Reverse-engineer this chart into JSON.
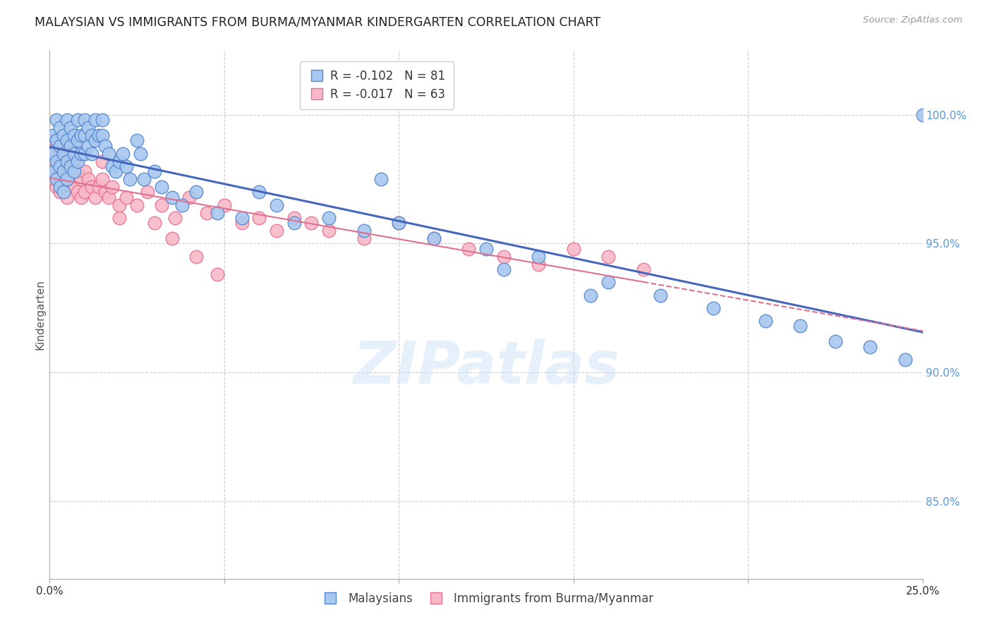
{
  "title": "MALAYSIAN VS IMMIGRANTS FROM BURMA/MYANMAR KINDERGARTEN CORRELATION CHART",
  "source": "Source: ZipAtlas.com",
  "ylabel": "Kindergarten",
  "right_yticks": [
    "100.0%",
    "95.0%",
    "90.0%",
    "85.0%"
  ],
  "right_ytick_vals": [
    1.0,
    0.95,
    0.9,
    0.85
  ],
  "xlim": [
    0.0,
    0.25
  ],
  "ylim": [
    0.82,
    1.025
  ],
  "legend_label1": "Malaysians",
  "legend_label2": "Immigrants from Burma/Myanmar",
  "R1": -0.102,
  "N1": 81,
  "R2": -0.017,
  "N2": 63,
  "color_blue_fill": "#A8C8F0",
  "color_blue_edge": "#5588CC",
  "color_pink_fill": "#F8B8C8",
  "color_pink_edge": "#E87090",
  "color_blue_line": "#4466BB",
  "color_pink_line": "#E07090",
  "color_right_axis": "#5599DD",
  "watermark": "ZIPatlas",
  "blue_x": [
    0.001,
    0.001,
    0.001,
    0.002,
    0.002,
    0.002,
    0.002,
    0.003,
    0.003,
    0.003,
    0.003,
    0.004,
    0.004,
    0.004,
    0.004,
    0.005,
    0.005,
    0.005,
    0.005,
    0.006,
    0.006,
    0.006,
    0.007,
    0.007,
    0.007,
    0.008,
    0.008,
    0.008,
    0.009,
    0.009,
    0.01,
    0.01,
    0.01,
    0.011,
    0.011,
    0.012,
    0.012,
    0.013,
    0.013,
    0.014,
    0.015,
    0.015,
    0.016,
    0.017,
    0.018,
    0.019,
    0.02,
    0.021,
    0.022,
    0.023,
    0.025,
    0.026,
    0.027,
    0.03,
    0.032,
    0.035,
    0.038,
    0.042,
    0.048,
    0.055,
    0.06,
    0.065,
    0.07,
    0.08,
    0.09,
    0.1,
    0.11,
    0.125,
    0.14,
    0.16,
    0.175,
    0.19,
    0.205,
    0.215,
    0.225,
    0.235,
    0.245,
    0.25,
    0.095,
    0.13,
    0.155
  ],
  "blue_y": [
    0.992,
    0.985,
    0.978,
    0.998,
    0.99,
    0.982,
    0.975,
    0.995,
    0.988,
    0.98,
    0.972,
    0.992,
    0.985,
    0.978,
    0.97,
    0.998,
    0.99,
    0.982,
    0.975,
    0.995,
    0.988,
    0.98,
    0.992,
    0.985,
    0.978,
    0.998,
    0.99,
    0.982,
    0.992,
    0.985,
    0.998,
    0.992,
    0.985,
    0.995,
    0.988,
    0.992,
    0.985,
    0.998,
    0.99,
    0.992,
    0.998,
    0.992,
    0.988,
    0.985,
    0.98,
    0.978,
    0.982,
    0.985,
    0.98,
    0.975,
    0.99,
    0.985,
    0.975,
    0.978,
    0.972,
    0.968,
    0.965,
    0.97,
    0.962,
    0.96,
    0.97,
    0.965,
    0.958,
    0.96,
    0.955,
    0.958,
    0.952,
    0.948,
    0.945,
    0.935,
    0.93,
    0.925,
    0.92,
    0.918,
    0.912,
    0.91,
    0.905,
    1.0,
    0.975,
    0.94,
    0.93
  ],
  "pink_x": [
    0.001,
    0.001,
    0.001,
    0.002,
    0.002,
    0.002,
    0.003,
    0.003,
    0.003,
    0.004,
    0.004,
    0.004,
    0.005,
    0.005,
    0.005,
    0.006,
    0.006,
    0.007,
    0.007,
    0.008,
    0.008,
    0.009,
    0.009,
    0.01,
    0.01,
    0.011,
    0.012,
    0.013,
    0.014,
    0.015,
    0.016,
    0.017,
    0.018,
    0.02,
    0.022,
    0.025,
    0.028,
    0.032,
    0.036,
    0.04,
    0.045,
    0.05,
    0.055,
    0.06,
    0.065,
    0.07,
    0.075,
    0.08,
    0.09,
    0.1,
    0.11,
    0.12,
    0.13,
    0.14,
    0.15,
    0.16,
    0.17,
    0.03,
    0.035,
    0.042,
    0.048,
    0.015,
    0.02
  ],
  "pink_y": [
    0.99,
    0.982,
    0.975,
    0.988,
    0.98,
    0.972,
    0.985,
    0.978,
    0.97,
    0.988,
    0.98,
    0.972,
    0.985,
    0.978,
    0.968,
    0.982,
    0.975,
    0.98,
    0.972,
    0.978,
    0.97,
    0.975,
    0.968,
    0.978,
    0.97,
    0.975,
    0.972,
    0.968,
    0.972,
    0.975,
    0.97,
    0.968,
    0.972,
    0.965,
    0.968,
    0.965,
    0.97,
    0.965,
    0.96,
    0.968,
    0.962,
    0.965,
    0.958,
    0.96,
    0.955,
    0.96,
    0.958,
    0.955,
    0.952,
    0.958,
    0.952,
    0.948,
    0.945,
    0.942,
    0.948,
    0.945,
    0.94,
    0.958,
    0.952,
    0.945,
    0.938,
    0.982,
    0.96
  ]
}
